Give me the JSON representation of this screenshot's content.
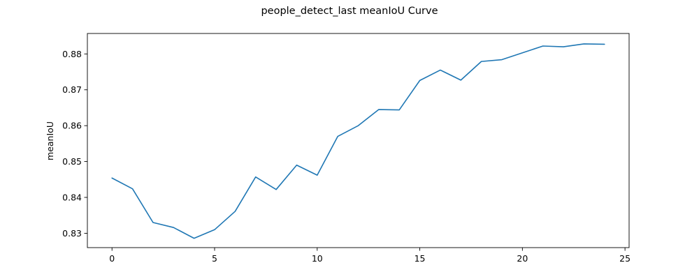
{
  "chart_data": {
    "type": "line",
    "title": "people_detect_last meanIoU Curve",
    "xlabel": "",
    "ylabel": "meanIoU",
    "xlim": [
      -1.2,
      25.2
    ],
    "ylim": [
      0.826,
      0.8857
    ],
    "xticks": [
      0,
      5,
      10,
      15,
      20,
      25
    ],
    "yticks": [
      0.83,
      0.84,
      0.85,
      0.86,
      0.87,
      0.88
    ],
    "xtick_labels": [
      "0",
      "5",
      "10",
      "15",
      "20",
      "25"
    ],
    "ytick_labels": [
      "0.83",
      "0.84",
      "0.85",
      "0.86",
      "0.87",
      "0.88"
    ],
    "grid": false,
    "series": [
      {
        "color": "#1f77b4",
        "x": [
          0,
          1,
          2,
          3,
          4,
          5,
          6,
          7,
          8,
          9,
          10,
          11,
          12,
          13,
          14,
          15,
          16,
          17,
          18,
          19,
          20,
          21,
          22,
          23,
          24
        ],
        "y": [
          0.8454,
          0.8424,
          0.833,
          0.8316,
          0.8286,
          0.831,
          0.8361,
          0.8457,
          0.8422,
          0.849,
          0.8462,
          0.857,
          0.86,
          0.8645,
          0.8644,
          0.8726,
          0.8755,
          0.8727,
          0.8779,
          0.8784,
          0.8803,
          0.8822,
          0.882,
          0.8828,
          0.8827
        ]
      }
    ]
  }
}
